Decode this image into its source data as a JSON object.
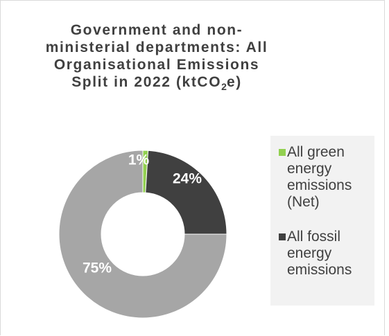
{
  "chart_data": {
    "type": "pie",
    "variant": "donut",
    "title_main": "Government and non-ministerial departments: All Organisational Emissions Split in 2022 (ktCO",
    "title_sub": "2",
    "title_end": "e)",
    "categories": [
      "All green energy emissions (Net)",
      "All fossil energy emissions",
      ""
    ],
    "values": [
      1,
      24,
      75
    ],
    "data_labels": [
      "1%",
      "24%",
      "75%"
    ],
    "colors": [
      "#92d050",
      "#404040",
      "#a6a6a6"
    ],
    "legend_position": "right",
    "legend_entries": [
      {
        "label": "All green energy emissions (Net)",
        "color": "#92d050"
      },
      {
        "label": "All fossil energy emissions",
        "color": "#404040"
      }
    ]
  }
}
